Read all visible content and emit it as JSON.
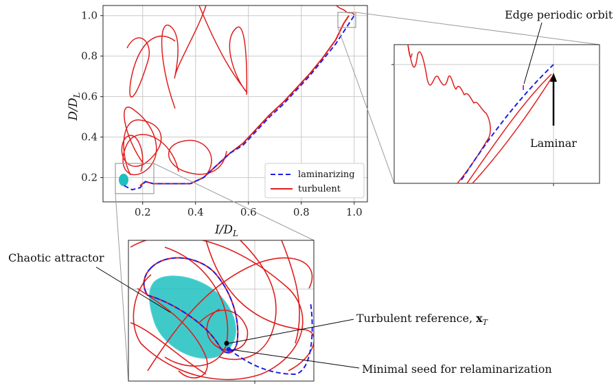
{
  "chart_data": {
    "type": "line",
    "xlabel": "I/D_L",
    "ylabel": "D/D_L",
    "xlim": [
      0.05,
      1.05
    ],
    "ylim": [
      0.08,
      1.05
    ],
    "xticks": [
      "0.2",
      "0.4",
      "0.6",
      "0.8",
      "1.0"
    ],
    "yticks": [
      "0.2",
      "0.4",
      "0.6",
      "0.8",
      "1.0"
    ],
    "grid": true,
    "legend": {
      "placement": "bottom-right",
      "entries": [
        "laminarizing",
        "turbulent"
      ]
    },
    "series": [
      {
        "name": "laminarizing",
        "style": "dashed",
        "color": "#1f1fe0",
        "x": [
          0.13,
          0.16,
          0.19,
          0.21,
          0.24,
          0.28,
          0.33,
          0.38,
          0.43,
          0.48,
          0.53,
          0.58,
          0.63,
          0.68,
          0.73,
          0.78,
          0.83,
          0.88,
          0.93,
          0.97,
          1.0
        ],
        "y": [
          0.16,
          0.14,
          0.15,
          0.18,
          0.17,
          0.17,
          0.17,
          0.17,
          0.2,
          0.26,
          0.32,
          0.36,
          0.43,
          0.5,
          0.56,
          0.63,
          0.7,
          0.78,
          0.86,
          0.94,
          1.0
        ]
      },
      {
        "name": "turbulent",
        "style": "solid",
        "color": "#e01c1c",
        "x": [
          0.19,
          0.21,
          0.24,
          0.28,
          0.33,
          0.38,
          0.43,
          0.48,
          0.53,
          0.58,
          0.63,
          0.68,
          0.73,
          0.78,
          0.83,
          0.88,
          0.93,
          0.96,
          0.98
        ],
        "y": [
          0.16,
          0.18,
          0.17,
          0.17,
          0.17,
          0.17,
          0.2,
          0.26,
          0.32,
          0.37,
          0.44,
          0.51,
          0.57,
          0.64,
          0.71,
          0.79,
          0.88,
          0.96,
          1.0
        ]
      }
    ],
    "insets": [
      {
        "name": "zoom-upper-right",
        "region": "near (1.0, 1.0)",
        "annotations": [
          "Edge periodic orbit",
          "Laminar"
        ]
      },
      {
        "name": "zoom-lower-left",
        "region": "near (0.15, 0.17)",
        "annotations": [
          "Chaotic attractor",
          "Turbulent reference, x_T",
          "Minimal seed for relaminarization"
        ]
      }
    ]
  },
  "annotations": {
    "edge_periodic_orbit": "Edge periodic orbit",
    "laminar": "Laminar",
    "chaotic_attractor": "Chaotic attractor",
    "turbulent_reference": "Turbulent reference, ",
    "turbulent_reference_symbol": "x",
    "turbulent_reference_sub": "T",
    "minimal_seed": "Minimal seed for relaminarization"
  },
  "labels": {
    "xlabel_main": "I/D",
    "xlabel_sub": "L",
    "ylabel_main": "D/D",
    "ylabel_sub": "L"
  },
  "colors": {
    "laminarizing": "#1f1fe0",
    "turbulent": "#e01c1c",
    "attractor": "#1fbfbf",
    "grid": "#c8c8c8",
    "connector": "#9a9a9a"
  }
}
